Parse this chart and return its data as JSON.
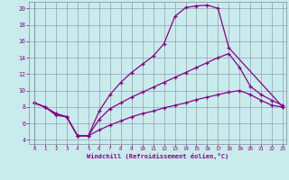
{
  "xlabel": "Windchill (Refroidissement éolien,°C)",
  "background_color": "#c8ecec",
  "line_color": "#880088",
  "grid_color": "#9999bb",
  "xlim": [
    -0.5,
    23.3
  ],
  "ylim": [
    3.5,
    20.8
  ],
  "xticks": [
    0,
    1,
    2,
    3,
    4,
    5,
    6,
    7,
    8,
    9,
    10,
    11,
    12,
    13,
    14,
    15,
    16,
    17,
    18,
    19,
    20,
    21,
    22,
    23
  ],
  "yticks": [
    4,
    6,
    8,
    10,
    12,
    14,
    16,
    18,
    20
  ],
  "curve1_x": [
    0,
    1,
    2,
    3,
    4,
    5,
    6,
    7,
    8,
    9,
    10,
    11,
    12,
    13,
    14,
    15,
    16,
    17,
    18,
    23
  ],
  "curve1_y": [
    8.5,
    8.0,
    7.0,
    6.8,
    4.5,
    4.5,
    7.5,
    9.5,
    11.0,
    12.2,
    13.2,
    14.2,
    15.7,
    19.0,
    20.1,
    20.3,
    20.4,
    20.0,
    15.2,
    8.0
  ],
  "curve2_x": [
    0,
    1,
    2,
    3,
    4,
    5,
    6,
    7,
    8,
    9,
    10,
    11,
    12,
    13,
    14,
    15,
    16,
    17,
    18,
    19,
    20,
    21,
    22,
    23
  ],
  "curve2_y": [
    8.5,
    8.0,
    7.2,
    6.8,
    4.5,
    4.5,
    6.5,
    7.8,
    8.5,
    9.2,
    9.8,
    10.4,
    11.0,
    11.6,
    12.2,
    12.8,
    13.4,
    14.0,
    14.5,
    12.8,
    10.5,
    9.5,
    8.8,
    8.2
  ],
  "curve3_x": [
    0,
    1,
    2,
    3,
    4,
    5,
    6,
    7,
    8,
    9,
    10,
    11,
    12,
    13,
    14,
    15,
    16,
    17,
    18,
    19,
    20,
    21,
    22,
    23
  ],
  "curve3_y": [
    8.5,
    8.0,
    7.2,
    6.8,
    4.5,
    4.5,
    5.2,
    5.8,
    6.3,
    6.8,
    7.2,
    7.5,
    7.9,
    8.2,
    8.5,
    8.9,
    9.2,
    9.5,
    9.8,
    10.0,
    9.5,
    8.8,
    8.2,
    8.0
  ]
}
